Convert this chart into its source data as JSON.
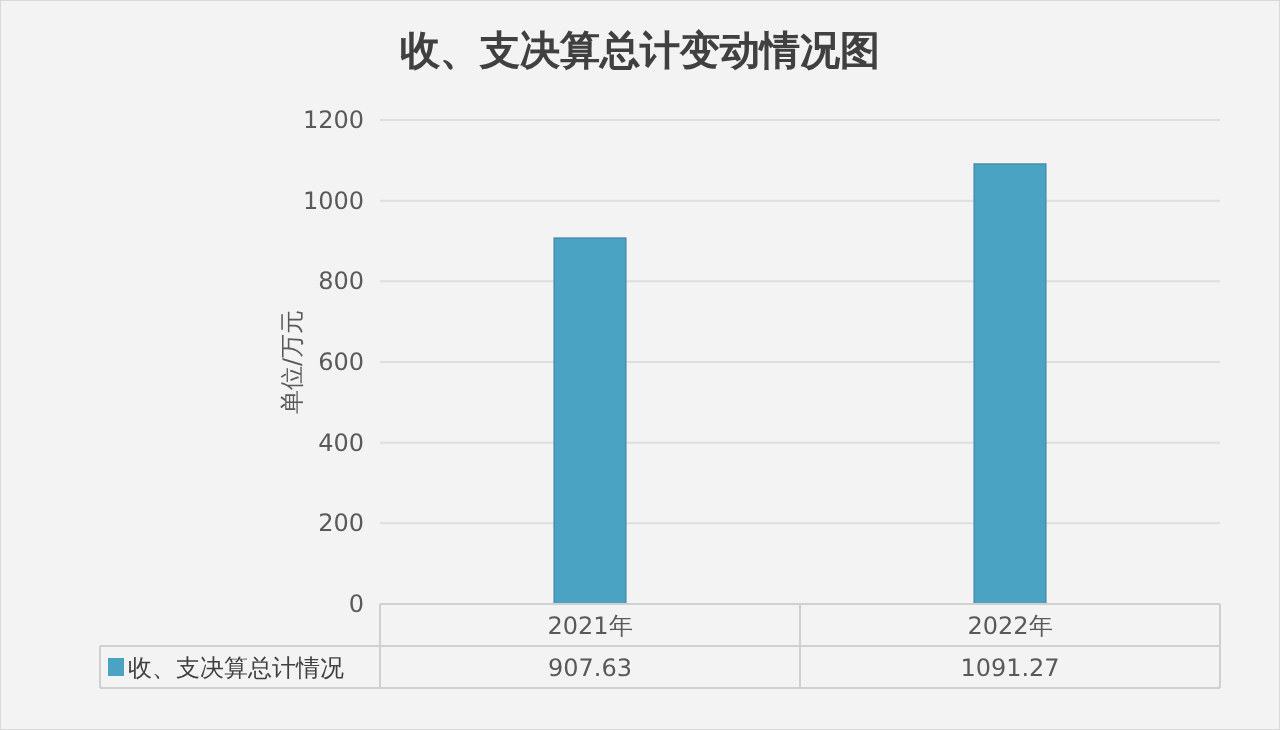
{
  "chart_data": {
    "type": "bar",
    "title": "收、支决算总计变动情况图",
    "ylabel": "单位/万元",
    "categories": [
      "2021年",
      "2022年"
    ],
    "series": [
      {
        "name": "收、支决算总计情况",
        "color": "#4aa3c2",
        "values": [
          907.63,
          1091.27
        ]
      }
    ],
    "ylim": [
      0,
      1200
    ],
    "yticks": [
      0,
      200,
      400,
      600,
      800,
      1000,
      1200
    ],
    "grid": "y",
    "data_labels": true,
    "legend": "bottom"
  }
}
